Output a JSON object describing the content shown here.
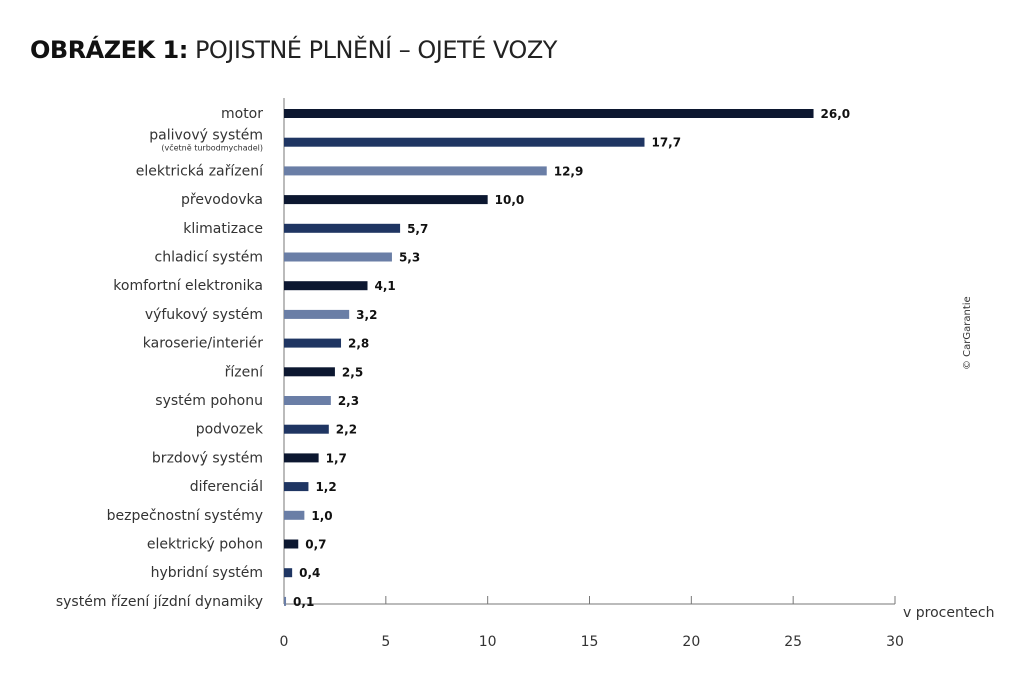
{
  "title_bold": "OBRÁZEK 1:",
  "title_rest": "POJISTNÉ PLNĚNÍ – OJETÉ VOZY",
  "credit": "© CarGarantie",
  "colors": {
    "dark": "#0c1730",
    "mid": "#1f3562",
    "light": "#6a7ea6"
  },
  "chart_data": {
    "type": "bar",
    "orientation": "horizontal",
    "title": "OBRÁZEK 1: POJISTNÉ PLNĚNÍ – OJETÉ VOZY",
    "xlabel": "v procentech",
    "xlim": [
      0,
      30
    ],
    "xticks": [
      "0",
      "5",
      "10",
      "15",
      "20",
      "25",
      "30"
    ],
    "categories": [
      "motor",
      "palivový systém",
      "elektrická zařízení",
      "převodovka",
      "klimatizace",
      "chladicí systém",
      "komfortní elektronika",
      "výfukový systém",
      "karoserie/interiér",
      "řízení",
      "systém pohonu",
      "podvozek",
      "brzdový systém",
      "diferenciál",
      "bezpečnostní systémy",
      "elektrický pohon",
      "hybridní systém",
      "systém řízení jízdní dynamiky"
    ],
    "subtitles": {
      "1": "(včetně turbodmychadel)"
    },
    "values": [
      26.0,
      17.7,
      12.9,
      10.0,
      5.7,
      5.3,
      4.1,
      3.2,
      2.8,
      2.5,
      2.3,
      2.2,
      1.7,
      1.2,
      1.0,
      0.7,
      0.4,
      0.1
    ],
    "value_labels": [
      "26,0",
      "17,7",
      "12,9",
      "10,0",
      "5,7",
      "5,3",
      "4,1",
      "3,2",
      "2,8",
      "2,5",
      "2,3",
      "2,2",
      "1,7",
      "1,2",
      "1,0",
      "0,7",
      "0,4",
      "0,1"
    ],
    "bar_tones": [
      "dark",
      "mid",
      "light",
      "dark",
      "mid",
      "light",
      "dark",
      "light",
      "mid",
      "dark",
      "light",
      "mid",
      "dark",
      "mid",
      "light",
      "dark",
      "mid",
      "light"
    ]
  }
}
